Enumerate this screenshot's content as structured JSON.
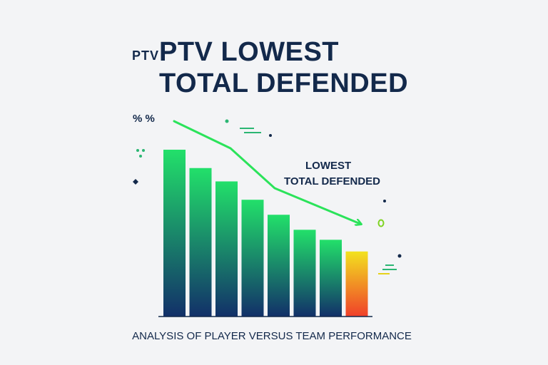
{
  "colors": {
    "bar_top": "#22e06a",
    "bar_bottom": "#123069",
    "lowest_top": "#f2e21f",
    "lowest_bottom": "#f0402a",
    "trend": "#2be35a",
    "text": "#13294b"
  },
  "chart_data": {
    "type": "bar",
    "title_prefix": "PTV",
    "title": "PTV LOWEST",
    "title_line2": "TOTAL DEFENDED",
    "subtitle": "ANALYSIS OF PLAYER VERSUS TEAM PERFORMANCE",
    "ylabel": "% %",
    "annotation_line1": "LOWEST",
    "annotation_line2": "TOTAL DEFENDED",
    "categories": [
      "",
      "",
      "",
      "",
      "",
      "",
      "",
      ""
    ],
    "values": [
      100,
      89,
      81,
      70,
      61,
      52,
      46,
      39
    ],
    "highlight_index": 7,
    "ylim": [
      0,
      100
    ],
    "trend_line": true,
    "grid": false,
    "legend": "none"
  }
}
